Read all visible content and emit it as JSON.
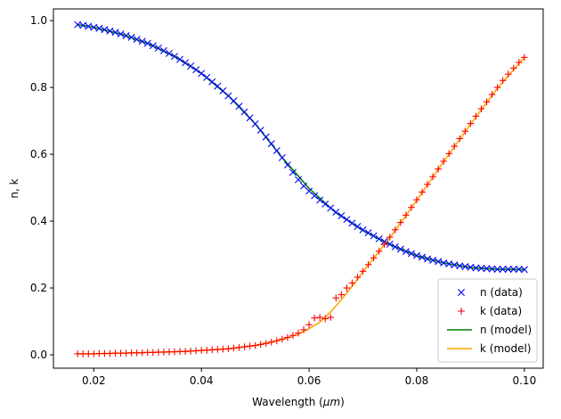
{
  "chart_data": {
    "type": "line",
    "title": "",
    "xlabel": "Wavelength (μm)",
    "xlabel_parts": {
      "pre": "Wavelength (",
      "unit": "μm",
      "post": ")"
    },
    "ylabel": "n, k",
    "xlim": [
      0.0125,
      0.1035
    ],
    "ylim": [
      -0.04,
      1.035
    ],
    "xticks": [
      0.02,
      0.04,
      0.06,
      0.08,
      0.1
    ],
    "xtick_labels": [
      "0.02",
      "0.04",
      "0.06",
      "0.08",
      "0.10"
    ],
    "yticks": [
      0.0,
      0.2,
      0.4,
      0.6,
      0.8,
      1.0
    ],
    "ytick_labels": [
      "0.0",
      "0.2",
      "0.4",
      "0.6",
      "0.8",
      "1.0"
    ],
    "grid": false,
    "legend_position": "bottom-right",
    "colors": {
      "n_data": "#0000ff",
      "k_data": "#ff0000",
      "n_model": "#008000",
      "k_model": "#ffa500"
    },
    "series": [
      {
        "name": "n (data)",
        "kind": "marker-x",
        "color": "#0000ff",
        "x": [
          0.017,
          0.018,
          0.019,
          0.02,
          0.021,
          0.022,
          0.023,
          0.024,
          0.025,
          0.026,
          0.027,
          0.028,
          0.029,
          0.03,
          0.031,
          0.032,
          0.033,
          0.034,
          0.035,
          0.036,
          0.037,
          0.038,
          0.039,
          0.04,
          0.041,
          0.042,
          0.043,
          0.044,
          0.045,
          0.046,
          0.047,
          0.048,
          0.049,
          0.05,
          0.051,
          0.052,
          0.053,
          0.054,
          0.055,
          0.056,
          0.057,
          0.058,
          0.059,
          0.06,
          0.061,
          0.062,
          0.063,
          0.064,
          0.065,
          0.066,
          0.067,
          0.068,
          0.069,
          0.07,
          0.071,
          0.072,
          0.073,
          0.074,
          0.075,
          0.076,
          0.077,
          0.078,
          0.079,
          0.08,
          0.081,
          0.082,
          0.083,
          0.084,
          0.085,
          0.086,
          0.087,
          0.088,
          0.089,
          0.09,
          0.091,
          0.092,
          0.093,
          0.094,
          0.095,
          0.096,
          0.097,
          0.098,
          0.099,
          0.1
        ],
        "y": [
          0.988,
          0.986,
          0.983,
          0.98,
          0.977,
          0.973,
          0.969,
          0.965,
          0.96,
          0.955,
          0.95,
          0.944,
          0.938,
          0.932,
          0.925,
          0.918,
          0.91,
          0.902,
          0.893,
          0.884,
          0.874,
          0.864,
          0.853,
          0.842,
          0.83,
          0.817,
          0.804,
          0.79,
          0.775,
          0.76,
          0.744,
          0.727,
          0.709,
          0.691,
          0.672,
          0.652,
          0.632,
          0.611,
          0.59,
          0.568,
          0.546,
          0.524,
          0.505,
          0.49,
          0.476,
          0.463,
          0.451,
          0.439,
          0.427,
          0.416,
          0.405,
          0.394,
          0.384,
          0.374,
          0.365,
          0.356,
          0.347,
          0.339,
          0.331,
          0.323,
          0.316,
          0.309,
          0.303,
          0.297,
          0.292,
          0.287,
          0.283,
          0.279,
          0.275,
          0.272,
          0.269,
          0.266,
          0.264,
          0.262,
          0.26,
          0.259,
          0.258,
          0.257,
          0.256,
          0.256,
          0.256,
          0.256,
          0.256,
          0.255
        ]
      },
      {
        "name": "k (data)",
        "kind": "marker-plus",
        "color": "#ff0000",
        "x": [
          0.017,
          0.018,
          0.019,
          0.02,
          0.021,
          0.022,
          0.023,
          0.024,
          0.025,
          0.026,
          0.027,
          0.028,
          0.029,
          0.03,
          0.031,
          0.032,
          0.033,
          0.034,
          0.035,
          0.036,
          0.037,
          0.038,
          0.039,
          0.04,
          0.041,
          0.042,
          0.043,
          0.044,
          0.045,
          0.046,
          0.047,
          0.048,
          0.049,
          0.05,
          0.051,
          0.052,
          0.053,
          0.054,
          0.055,
          0.056,
          0.057,
          0.058,
          0.059,
          0.06,
          0.061,
          0.062,
          0.063,
          0.064,
          0.065,
          0.066,
          0.067,
          0.068,
          0.069,
          0.07,
          0.071,
          0.072,
          0.073,
          0.074,
          0.075,
          0.076,
          0.077,
          0.078,
          0.079,
          0.08,
          0.081,
          0.082,
          0.083,
          0.084,
          0.085,
          0.086,
          0.087,
          0.088,
          0.089,
          0.09,
          0.091,
          0.092,
          0.093,
          0.094,
          0.095,
          0.096,
          0.097,
          0.098,
          0.099,
          0.1
        ],
        "y": [
          0.003,
          0.003,
          0.003,
          0.003,
          0.004,
          0.004,
          0.004,
          0.005,
          0.005,
          0.005,
          0.006,
          0.006,
          0.006,
          0.007,
          0.007,
          0.008,
          0.008,
          0.009,
          0.009,
          0.01,
          0.01,
          0.011,
          0.012,
          0.013,
          0.014,
          0.015,
          0.016,
          0.017,
          0.018,
          0.02,
          0.022,
          0.024,
          0.026,
          0.028,
          0.031,
          0.034,
          0.038,
          0.042,
          0.047,
          0.052,
          0.058,
          0.065,
          0.075,
          0.09,
          0.11,
          0.112,
          0.108,
          0.112,
          0.17,
          0.18,
          0.2,
          0.215,
          0.232,
          0.25,
          0.27,
          0.29,
          0.31,
          0.33,
          0.352,
          0.374,
          0.396,
          0.418,
          0.441,
          0.464,
          0.487,
          0.51,
          0.533,
          0.556,
          0.579,
          0.602,
          0.624,
          0.647,
          0.669,
          0.692,
          0.714,
          0.736,
          0.757,
          0.779,
          0.8,
          0.821,
          0.84,
          0.858,
          0.875,
          0.89
        ]
      },
      {
        "name": "n (model)",
        "kind": "line",
        "color": "#008000",
        "x": [
          0.017,
          0.02,
          0.025,
          0.03,
          0.035,
          0.04,
          0.045,
          0.05,
          0.055,
          0.06,
          0.065,
          0.07,
          0.075,
          0.08,
          0.085,
          0.09,
          0.095,
          0.1
        ],
        "y": [
          0.988,
          0.98,
          0.96,
          0.932,
          0.893,
          0.842,
          0.775,
          0.691,
          0.59,
          0.498,
          0.425,
          0.372,
          0.33,
          0.296,
          0.275,
          0.261,
          0.256,
          0.255
        ]
      },
      {
        "name": "k (model)",
        "kind": "line",
        "color": "#ffa500",
        "x": [
          0.017,
          0.02,
          0.025,
          0.03,
          0.035,
          0.04,
          0.045,
          0.05,
          0.055,
          0.058,
          0.06,
          0.062,
          0.064,
          0.066,
          0.068,
          0.07,
          0.075,
          0.08,
          0.085,
          0.09,
          0.095,
          0.1
        ],
        "y": [
          0.003,
          0.003,
          0.005,
          0.007,
          0.009,
          0.013,
          0.018,
          0.028,
          0.046,
          0.062,
          0.078,
          0.098,
          0.128,
          0.165,
          0.205,
          0.248,
          0.35,
          0.462,
          0.578,
          0.69,
          0.798,
          0.89
        ]
      }
    ]
  }
}
